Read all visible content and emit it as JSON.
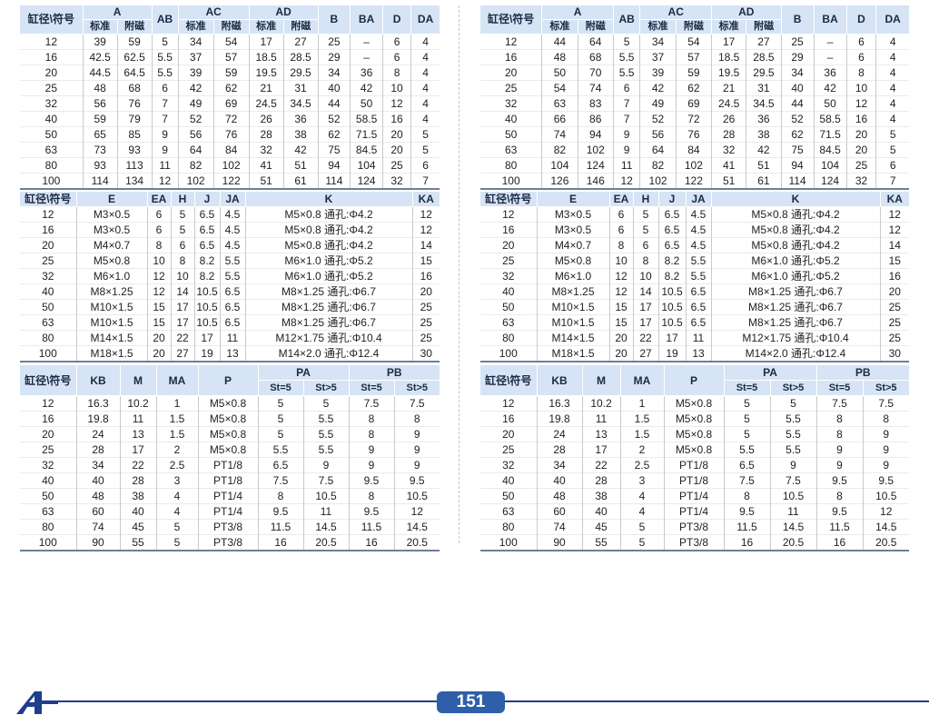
{
  "table1": {
    "hdr_bore": "缸径\\符号",
    "hdr_A": "A",
    "hdr_AB": "AB",
    "hdr_AC": "AC",
    "hdr_AD": "AD",
    "hdr_B": "B",
    "hdr_BA": "BA",
    "hdr_D": "D",
    "hdr_DA": "DA",
    "sub_std": "标准",
    "sub_mag": "附磁"
  },
  "table2": {
    "hdr_bore": "缸径\\符号",
    "hdr_E": "E",
    "hdr_EA": "EA",
    "hdr_H": "H",
    "hdr_J": "J",
    "hdr_JA": "JA",
    "hdr_K": "K",
    "hdr_KA": "KA"
  },
  "table3": {
    "hdr_bore": "缸径\\符号",
    "hdr_KB": "KB",
    "hdr_M": "M",
    "hdr_MA": "MA",
    "hdr_P": "P",
    "hdr_PA": "PA",
    "hdr_PB": "PB",
    "sub_st5": "St=5",
    "sub_st5p": "St>5"
  },
  "left": {
    "t1_rows": [
      [
        "12",
        "39",
        "59",
        "5",
        "34",
        "54",
        "17",
        "27",
        "25",
        "–",
        "6",
        "4"
      ],
      [
        "16",
        "42.5",
        "62.5",
        "5.5",
        "37",
        "57",
        "18.5",
        "28.5",
        "29",
        "–",
        "6",
        "4"
      ],
      [
        "20",
        "44.5",
        "64.5",
        "5.5",
        "39",
        "59",
        "19.5",
        "29.5",
        "34",
        "36",
        "8",
        "4"
      ],
      [
        "25",
        "48",
        "68",
        "6",
        "42",
        "62",
        "21",
        "31",
        "40",
        "42",
        "10",
        "4"
      ],
      [
        "32",
        "56",
        "76",
        "7",
        "49",
        "69",
        "24.5",
        "34.5",
        "44",
        "50",
        "12",
        "4"
      ],
      [
        "40",
        "59",
        "79",
        "7",
        "52",
        "72",
        "26",
        "36",
        "52",
        "58.5",
        "16",
        "4"
      ],
      [
        "50",
        "65",
        "85",
        "9",
        "56",
        "76",
        "28",
        "38",
        "62",
        "71.5",
        "20",
        "5"
      ],
      [
        "63",
        "73",
        "93",
        "9",
        "64",
        "84",
        "32",
        "42",
        "75",
        "84.5",
        "20",
        "5"
      ],
      [
        "80",
        "93",
        "113",
        "11",
        "82",
        "102",
        "41",
        "51",
        "94",
        "104",
        "25",
        "6"
      ],
      [
        "100",
        "114",
        "134",
        "12",
        "102",
        "122",
        "51",
        "61",
        "114",
        "124",
        "32",
        "7"
      ]
    ],
    "t2_rows": [
      [
        "12",
        "M3×0.5",
        "6",
        "5",
        "6.5",
        "4.5",
        "M5×0.8 通孔:Φ4.2",
        "12"
      ],
      [
        "16",
        "M3×0.5",
        "6",
        "5",
        "6.5",
        "4.5",
        "M5×0.8 通孔:Φ4.2",
        "12"
      ],
      [
        "20",
        "M4×0.7",
        "8",
        "6",
        "6.5",
        "4.5",
        "M5×0.8 通孔:Φ4.2",
        "14"
      ],
      [
        "25",
        "M5×0.8",
        "10",
        "8",
        "8.2",
        "5.5",
        "M6×1.0 通孔:Φ5.2",
        "15"
      ],
      [
        "32",
        "M6×1.0",
        "12",
        "10",
        "8.2",
        "5.5",
        "M6×1.0 通孔:Φ5.2",
        "16"
      ],
      [
        "40",
        "M8×1.25",
        "12",
        "14",
        "10.5",
        "6.5",
        "M8×1.25 通孔:Φ6.7",
        "20"
      ],
      [
        "50",
        "M10×1.5",
        "15",
        "17",
        "10.5",
        "6.5",
        "M8×1.25 通孔:Φ6.7",
        "25"
      ],
      [
        "63",
        "M10×1.5",
        "15",
        "17",
        "10.5",
        "6.5",
        "M8×1.25 通孔:Φ6.7",
        "25"
      ],
      [
        "80",
        "M14×1.5",
        "20",
        "22",
        "17",
        "11",
        "M12×1.75 通孔:Φ10.4",
        "25"
      ],
      [
        "100",
        "M18×1.5",
        "20",
        "27",
        "19",
        "13",
        "M14×2.0 通孔:Φ12.4",
        "30"
      ]
    ],
    "t3_rows": [
      [
        "12",
        "16.3",
        "10.2",
        "1",
        "M5×0.8",
        "5",
        "5",
        "7.5",
        "7.5"
      ],
      [
        "16",
        "19.8",
        "11",
        "1.5",
        "M5×0.8",
        "5",
        "5.5",
        "8",
        "8"
      ],
      [
        "20",
        "24",
        "13",
        "1.5",
        "M5×0.8",
        "5",
        "5.5",
        "8",
        "9"
      ],
      [
        "25",
        "28",
        "17",
        "2",
        "M5×0.8",
        "5.5",
        "5.5",
        "9",
        "9"
      ],
      [
        "32",
        "34",
        "22",
        "2.5",
        "PT1/8",
        "6.5",
        "9",
        "9",
        "9"
      ],
      [
        "40",
        "40",
        "28",
        "3",
        "PT1/8",
        "7.5",
        "7.5",
        "9.5",
        "9.5"
      ],
      [
        "50",
        "48",
        "38",
        "4",
        "PT1/4",
        "8",
        "10.5",
        "8",
        "10.5"
      ],
      [
        "63",
        "60",
        "40",
        "4",
        "PT1/4",
        "9.5",
        "11",
        "9.5",
        "12"
      ],
      [
        "80",
        "74",
        "45",
        "5",
        "PT3/8",
        "11.5",
        "14.5",
        "11.5",
        "14.5"
      ],
      [
        "100",
        "90",
        "55",
        "5",
        "PT3/8",
        "16",
        "20.5",
        "16",
        "20.5"
      ]
    ]
  },
  "right": {
    "t1_rows": [
      [
        "12",
        "44",
        "64",
        "5",
        "34",
        "54",
        "17",
        "27",
        "25",
        "–",
        "6",
        "4"
      ],
      [
        "16",
        "48",
        "68",
        "5.5",
        "37",
        "57",
        "18.5",
        "28.5",
        "29",
        "–",
        "6",
        "4"
      ],
      [
        "20",
        "50",
        "70",
        "5.5",
        "39",
        "59",
        "19.5",
        "29.5",
        "34",
        "36",
        "8",
        "4"
      ],
      [
        "25",
        "54",
        "74",
        "6",
        "42",
        "62",
        "21",
        "31",
        "40",
        "42",
        "10",
        "4"
      ],
      [
        "32",
        "63",
        "83",
        "7",
        "49",
        "69",
        "24.5",
        "34.5",
        "44",
        "50",
        "12",
        "4"
      ],
      [
        "40",
        "66",
        "86",
        "7",
        "52",
        "72",
        "26",
        "36",
        "52",
        "58.5",
        "16",
        "4"
      ],
      [
        "50",
        "74",
        "94",
        "9",
        "56",
        "76",
        "28",
        "38",
        "62",
        "71.5",
        "20",
        "5"
      ],
      [
        "63",
        "82",
        "102",
        "9",
        "64",
        "84",
        "32",
        "42",
        "75",
        "84.5",
        "20",
        "5"
      ],
      [
        "80",
        "104",
        "124",
        "11",
        "82",
        "102",
        "41",
        "51",
        "94",
        "104",
        "25",
        "6"
      ],
      [
        "100",
        "126",
        "146",
        "12",
        "102",
        "122",
        "51",
        "61",
        "114",
        "124",
        "32",
        "7"
      ]
    ],
    "t2_rows": [
      [
        "12",
        "M3×0.5",
        "6",
        "5",
        "6.5",
        "4.5",
        "M5×0.8 通孔:Φ4.2",
        "12"
      ],
      [
        "16",
        "M3×0.5",
        "6",
        "5",
        "6.5",
        "4.5",
        "M5×0.8 通孔:Φ4.2",
        "12"
      ],
      [
        "20",
        "M4×0.7",
        "8",
        "6",
        "6.5",
        "4.5",
        "M5×0.8 通孔:Φ4.2",
        "14"
      ],
      [
        "25",
        "M5×0.8",
        "10",
        "8",
        "8.2",
        "5.5",
        "M6×1.0 通孔:Φ5.2",
        "15"
      ],
      [
        "32",
        "M6×1.0",
        "12",
        "10",
        "8.2",
        "5.5",
        "M6×1.0 通孔:Φ5.2",
        "16"
      ],
      [
        "40",
        "M8×1.25",
        "12",
        "14",
        "10.5",
        "6.5",
        "M8×1.25 通孔:Φ6.7",
        "20"
      ],
      [
        "50",
        "M10×1.5",
        "15",
        "17",
        "10.5",
        "6.5",
        "M8×1.25 通孔:Φ6.7",
        "25"
      ],
      [
        "63",
        "M10×1.5",
        "15",
        "17",
        "10.5",
        "6.5",
        "M8×1.25 通孔:Φ6.7",
        "25"
      ],
      [
        "80",
        "M14×1.5",
        "20",
        "22",
        "17",
        "11",
        "M12×1.75 通孔:Φ10.4",
        "25"
      ],
      [
        "100",
        "M18×1.5",
        "20",
        "27",
        "19",
        "13",
        "M14×2.0 通孔:Φ12.4",
        "30"
      ]
    ],
    "t3_rows": [
      [
        "12",
        "16.3",
        "10.2",
        "1",
        "M5×0.8",
        "5",
        "5",
        "7.5",
        "7.5"
      ],
      [
        "16",
        "19.8",
        "11",
        "1.5",
        "M5×0.8",
        "5",
        "5.5",
        "8",
        "8"
      ],
      [
        "20",
        "24",
        "13",
        "1.5",
        "M5×0.8",
        "5",
        "5.5",
        "8",
        "9"
      ],
      [
        "25",
        "28",
        "17",
        "2",
        "M5×0.8",
        "5.5",
        "5.5",
        "9",
        "9"
      ],
      [
        "32",
        "34",
        "22",
        "2.5",
        "PT1/8",
        "6.5",
        "9",
        "9",
        "9"
      ],
      [
        "40",
        "40",
        "28",
        "3",
        "PT1/8",
        "7.5",
        "7.5",
        "9.5",
        "9.5"
      ],
      [
        "50",
        "48",
        "38",
        "4",
        "PT1/4",
        "8",
        "10.5",
        "8",
        "10.5"
      ],
      [
        "63",
        "60",
        "40",
        "4",
        "PT1/4",
        "9.5",
        "11",
        "9.5",
        "12"
      ],
      [
        "80",
        "74",
        "45",
        "5",
        "PT3/8",
        "11.5",
        "14.5",
        "11.5",
        "14.5"
      ],
      [
        "100",
        "90",
        "55",
        "5",
        "PT3/8",
        "16",
        "20.5",
        "16",
        "20.5"
      ]
    ]
  },
  "footer": {
    "page_number": "151",
    "logo_icon": "company-logo-icon",
    "line_color": "#1e3f8e",
    "badge_color": "#2f5fa8",
    "header_bg": "#d7e4f5"
  }
}
